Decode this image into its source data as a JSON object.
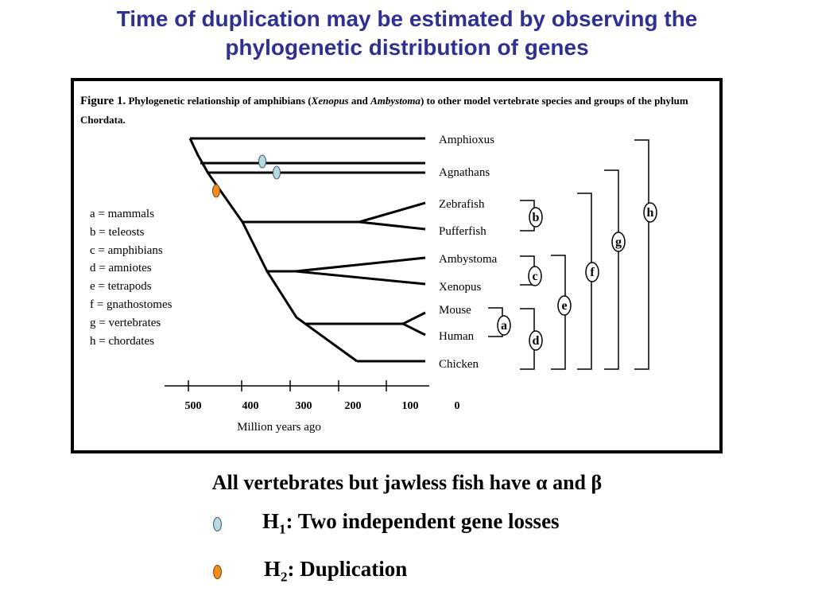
{
  "title": {
    "line1": "Time of duplication may be estimated by observing the",
    "line2": "phylogenetic distribution of genes"
  },
  "figure": {
    "caption_label": "Figure 1.",
    "caption_part1": " Phylogenetic relationship of amphibians (",
    "caption_italic1": "Xenopus",
    "caption_part2": " and ",
    "caption_italic2": "Ambystoma",
    "caption_part3": ") to other model vertebrate species and groups of the phylum Chordata.",
    "taxa": [
      "Amphioxus",
      "Agnathans",
      "Zebrafish",
      "Pufferfish",
      "Ambystoma",
      "Xenopus",
      "Mouse",
      "Human",
      "Chicken"
    ],
    "legend": [
      "a = mammals",
      "b = teleosts",
      "c = amphibians",
      "d = amniotes",
      "e = tetrapods",
      "f = gnathostomes",
      "g = vertebrates",
      "h = chordates"
    ],
    "clade_letters": [
      "a",
      "b",
      "c",
      "d",
      "e",
      "f",
      "g",
      "h"
    ],
    "axis": {
      "ticks": [
        "500",
        "400",
        "300",
        "200",
        "100",
        "0"
      ],
      "label": "Million years ago"
    }
  },
  "conclusion": {
    "prefix": "All vertebrates but jawless fish have ",
    "alpha": "α",
    "middle": " and ",
    "beta": "β"
  },
  "hypotheses": [
    {
      "h": "H",
      "sub": "1",
      "text": ": Two independent gene losses",
      "marker_color": "#b8d8e4"
    },
    {
      "h": "H",
      "sub": "2",
      "text": ": Duplication",
      "marker_color": "#f08c1a"
    }
  ]
}
